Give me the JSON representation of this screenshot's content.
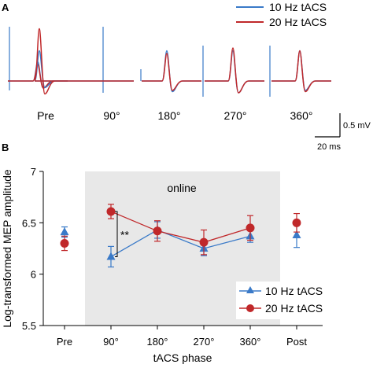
{
  "panel_a": {
    "label": "A",
    "legend": [
      "10 Hz tACS",
      "20 Hz tACS"
    ],
    "conditions": [
      "Pre",
      "90°",
      "180°",
      "270°",
      "360°"
    ],
    "scalebar": {
      "vertical": "0.5 mV",
      "horizontal": "20 ms"
    }
  },
  "panel_b": {
    "label": "B",
    "shaded_label": "online"
  },
  "chart_data": {
    "type": "line",
    "categories": [
      "Pre",
      "90°",
      "180°",
      "270°",
      "360°",
      "Post"
    ],
    "xlabel": "tACS phase",
    "ylabel": "Log-transformed MEP amplitude",
    "ylim": [
      5.5,
      7
    ],
    "yticks": [
      5.5,
      6,
      6.5,
      7
    ],
    "shaded_region": [
      "90°",
      "360°"
    ],
    "legend_position": "bottom-right",
    "series": [
      {
        "name": "10 Hz tACS",
        "color": "#3a7ac8",
        "marker": "triangle",
        "values": [
          6.41,
          6.17,
          6.43,
          6.25,
          6.37,
          6.38
        ],
        "errors": [
          0.05,
          0.1,
          0.08,
          0.07,
          0.06,
          0.12
        ]
      },
      {
        "name": "20 Hz tACS",
        "color": "#c0282a",
        "marker": "circle",
        "values": [
          6.3,
          6.61,
          6.42,
          6.31,
          6.45,
          6.5
        ],
        "errors": [
          0.07,
          0.07,
          0.1,
          0.12,
          0.12,
          0.09
        ]
      }
    ],
    "significance": {
      "label": "**",
      "category": "90°"
    }
  }
}
